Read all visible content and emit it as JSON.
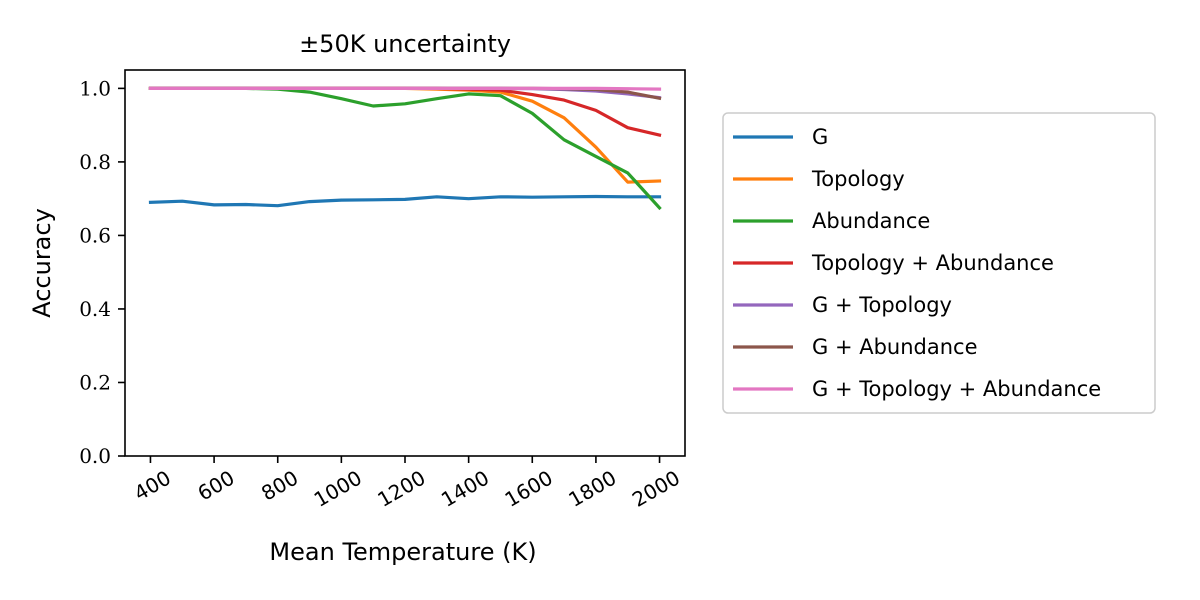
{
  "chart_data": {
    "type": "line",
    "title": "±50K uncertainty",
    "xlabel": "Mean Temperature (K)",
    "ylabel": "Accuracy",
    "x": [
      400,
      500,
      600,
      700,
      800,
      900,
      1000,
      1100,
      1200,
      1300,
      1400,
      1500,
      1600,
      1700,
      1800,
      1900,
      2000
    ],
    "xlim": [
      320,
      2080
    ],
    "ylim": [
      0.0,
      1.05
    ],
    "x_ticks": [
      "400",
      "600",
      "800",
      "1000",
      "1200",
      "1400",
      "1600",
      "1800",
      "2000"
    ],
    "y_ticks": [
      "0.0",
      "0.2",
      "0.4",
      "0.6",
      "0.8",
      "1.0"
    ],
    "grid": false,
    "legend_position": "right",
    "series": [
      {
        "name": "G",
        "color": "#1f77b4",
        "values": [
          0.69,
          0.693,
          0.683,
          0.684,
          0.681,
          0.692,
          0.696,
          0.697,
          0.698,
          0.705,
          0.7,
          0.705,
          0.704,
          0.705,
          0.706,
          0.705,
          0.705
        ]
      },
      {
        "name": "Topology",
        "color": "#ff7f0e",
        "values": [
          1.0,
          1.0,
          1.0,
          1.0,
          1.0,
          1.0,
          1.0,
          1.0,
          1.0,
          0.998,
          0.995,
          0.99,
          0.965,
          0.92,
          0.84,
          0.745,
          0.748
        ]
      },
      {
        "name": "Abundance",
        "color": "#2ca02c",
        "values": [
          1.0,
          1.0,
          1.0,
          1.0,
          0.998,
          0.99,
          0.972,
          0.952,
          0.958,
          0.972,
          0.985,
          0.98,
          0.932,
          0.86,
          0.815,
          0.77,
          0.675
        ]
      },
      {
        "name": "Topology + Abundance",
        "color": "#d62728",
        "values": [
          1.0,
          1.0,
          1.0,
          1.0,
          1.0,
          1.0,
          1.0,
          1.0,
          1.0,
          1.0,
          0.998,
          0.995,
          0.983,
          0.968,
          0.94,
          0.893,
          0.873
        ]
      },
      {
        "name": "G + Topology",
        "color": "#9467bd",
        "values": [
          1.0,
          1.0,
          1.0,
          1.0,
          1.0,
          1.0,
          1.0,
          1.0,
          1.0,
          1.0,
          1.0,
          1.0,
          0.999,
          0.997,
          0.993,
          0.985,
          0.975
        ]
      },
      {
        "name": "G + Abundance",
        "color": "#8c564b",
        "values": [
          1.0,
          1.0,
          1.0,
          1.0,
          1.0,
          1.0,
          1.0,
          1.0,
          1.0,
          1.0,
          1.0,
          1.0,
          1.0,
          0.999,
          0.997,
          0.99,
          0.973
        ]
      },
      {
        "name": "G + Topology + Abundance",
        "color": "#e377c2",
        "values": [
          1.0,
          1.0,
          1.0,
          1.0,
          1.0,
          1.0,
          1.0,
          1.0,
          1.0,
          1.0,
          1.0,
          1.0,
          1.0,
          1.0,
          1.0,
          0.999,
          0.998
        ]
      }
    ]
  }
}
